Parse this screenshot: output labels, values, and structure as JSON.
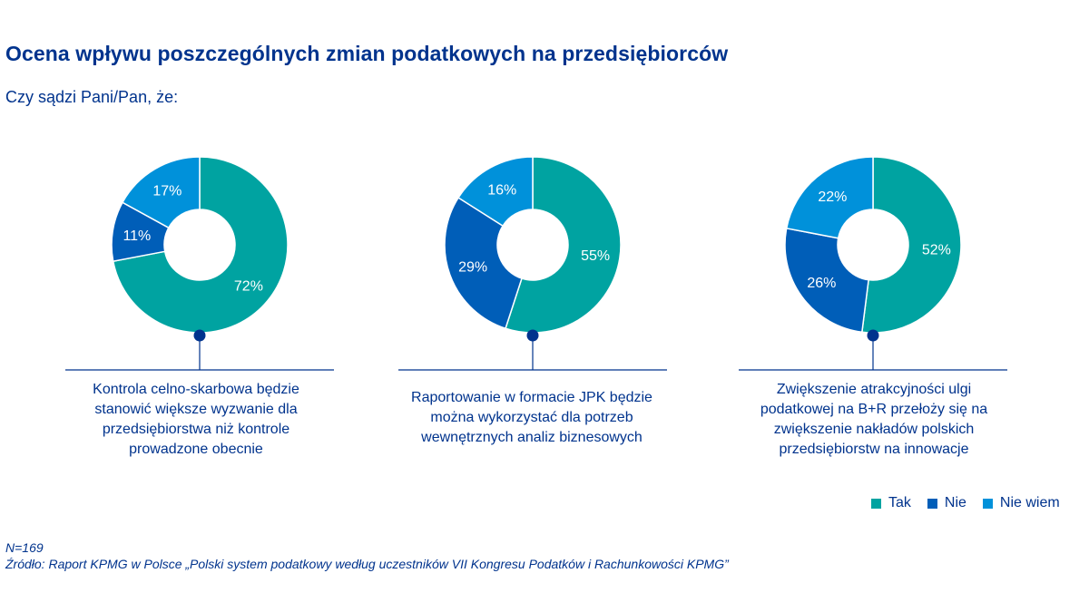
{
  "header": {
    "title": "Ocena wpływu poszczególnych zmian podatkowych na przedsiębiorców",
    "subtitle": "Czy sądzi Pani/Pan, że:"
  },
  "colors": {
    "tak": "#00a3a1",
    "nie": "#005eb8",
    "nie_wiem": "#0091da",
    "navy": "#00338d",
    "hole": "#ffffff"
  },
  "chart_data": [
    {
      "type": "pie",
      "variant": "donut",
      "categories": [
        "Tak",
        "Nie",
        "Nie wiem"
      ],
      "values": [
        72,
        11,
        17
      ],
      "labels": [
        "72%",
        "11%",
        "17%"
      ],
      "caption": [
        "Kontrola celno-skarbowa będzie",
        "stanowić większe wyzwanie dla",
        "przedsiębiorstwa niż kontrole",
        "prowadzone obecnie"
      ]
    },
    {
      "type": "pie",
      "variant": "donut",
      "categories": [
        "Tak",
        "Nie",
        "Nie wiem"
      ],
      "values": [
        55,
        29,
        16
      ],
      "labels": [
        "55%",
        "29%",
        "16%"
      ],
      "caption": [
        "Raportowanie w formacie JPK będzie",
        "można wykorzystać dla potrzeb",
        "wewnętrznych analiz biznesowych"
      ]
    },
    {
      "type": "pie",
      "variant": "donut",
      "categories": [
        "Tak",
        "Nie",
        "Nie wiem"
      ],
      "values": [
        52,
        26,
        22
      ],
      "labels": [
        "52%",
        "26%",
        "22%"
      ],
      "caption": [
        "Zwiększenie atrakcyjności ulgi",
        "podatkowej na B+R przełoży się na",
        "zwiększenie nakładów polskich",
        "przedsiębiorstw na innowacje"
      ]
    }
  ],
  "legend": {
    "items": [
      {
        "label": "Tak",
        "color": "#00a3a1"
      },
      {
        "label": "Nie",
        "color": "#005eb8"
      },
      {
        "label": "Nie wiem",
        "color": "#0091da"
      }
    ]
  },
  "footer": {
    "n": "N=169",
    "source": "Źródło: Raport KPMG w Polsce „Polski system podatkowy według uczestników VII Kongresu Podatków i Rachunkowości KPMG”"
  }
}
